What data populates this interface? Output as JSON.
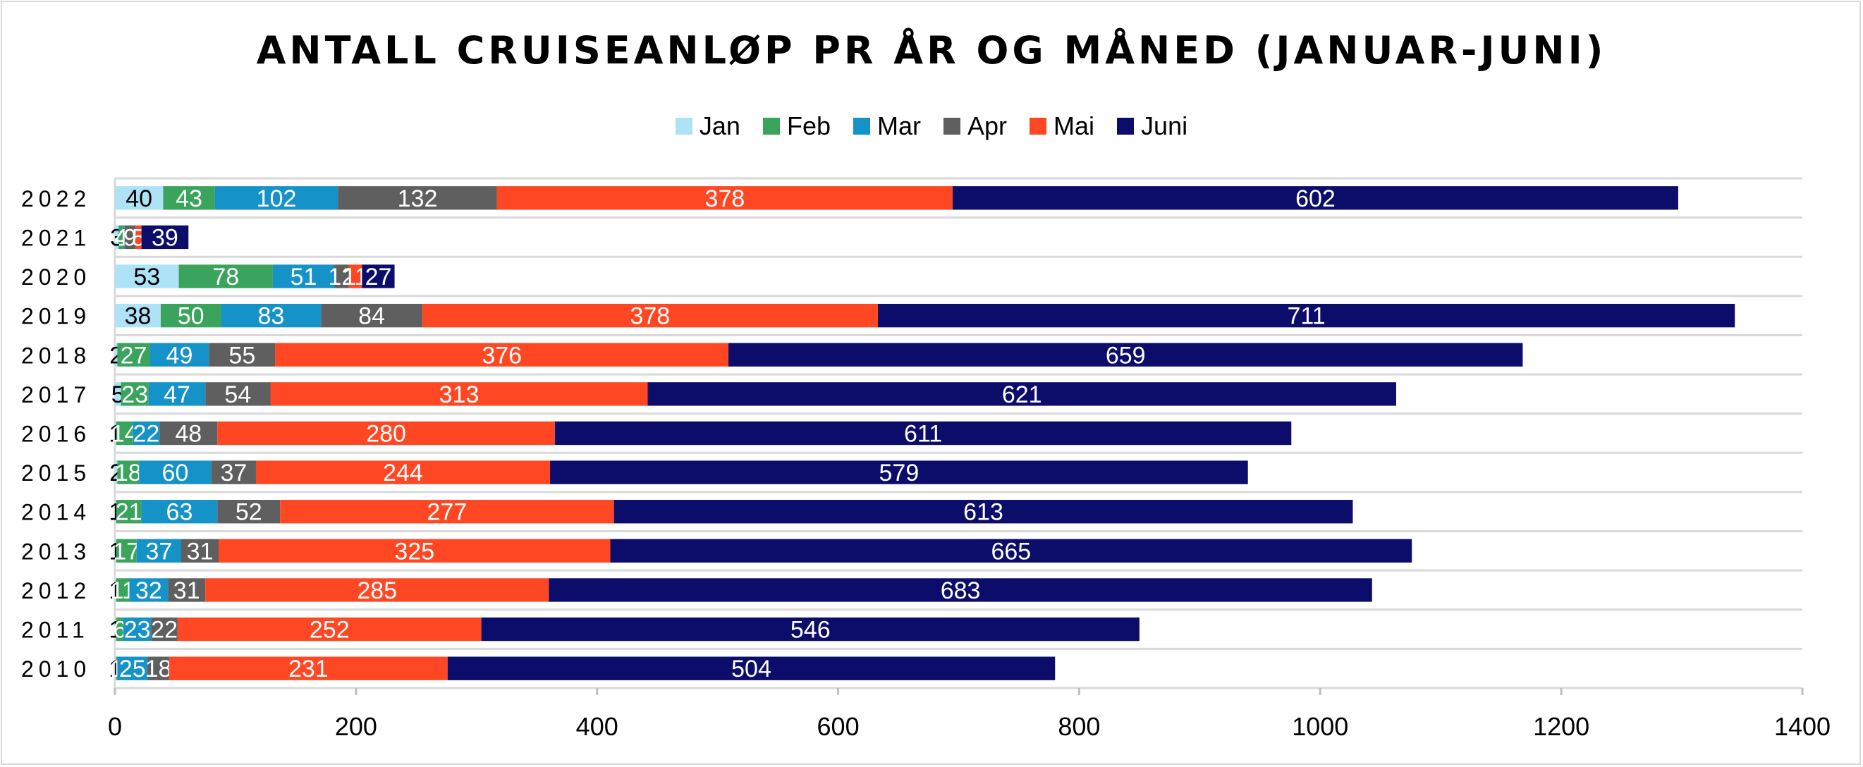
{
  "chart_data": {
    "type": "bar",
    "orientation": "horizontal",
    "stacked": true,
    "title": "ANTALL CRUISEANLØP PR ÅR OG MÅNED (JANUAR-JUNI)",
    "xlabel": "",
    "ylabel": "",
    "xlim": [
      0,
      1400
    ],
    "x_ticks": [
      0,
      200,
      400,
      600,
      800,
      1000,
      1200,
      1400
    ],
    "grid": "horizontal",
    "legend_position": "top",
    "categories": [
      "2022",
      "2021",
      "2020",
      "2019",
      "2018",
      "2017",
      "2016",
      "2015",
      "2014",
      "2013",
      "2012",
      "2011",
      "2010"
    ],
    "series": [
      {
        "name": "Jan",
        "color": "#aee3f7",
        "label_color": "#000000",
        "values": [
          40,
          3,
          53,
          38,
          2,
          5,
          1,
          2,
          1,
          1,
          1,
          1,
          1
        ]
      },
      {
        "name": "Feb",
        "color": "#3aa35c",
        "label_color": "#ffffff",
        "values": [
          43,
          4,
          78,
          50,
          27,
          23,
          14,
          18,
          21,
          17,
          11,
          6,
          1
        ]
      },
      {
        "name": "Mar",
        "color": "#1592c7",
        "label_color": "#ffffff",
        "values": [
          102,
          1,
          51,
          83,
          49,
          47,
          22,
          60,
          63,
          37,
          32,
          23,
          25
        ]
      },
      {
        "name": "Apr",
        "color": "#5f5f5f",
        "label_color": "#ffffff",
        "values": [
          132,
          9,
          12,
          84,
          55,
          54,
          48,
          37,
          52,
          31,
          31,
          22,
          18
        ]
      },
      {
        "name": "Mai",
        "color": "#ff4823",
        "label_color": "#ffffff",
        "values": [
          378,
          5,
          11,
          378,
          376,
          313,
          280,
          244,
          277,
          325,
          285,
          252,
          231
        ]
      },
      {
        "name": "Juni",
        "color": "#0c0c6b",
        "label_color": "#ffffff",
        "values": [
          602,
          39,
          27,
          711,
          659,
          621,
          611,
          579,
          613,
          665,
          683,
          546,
          504
        ]
      }
    ]
  }
}
